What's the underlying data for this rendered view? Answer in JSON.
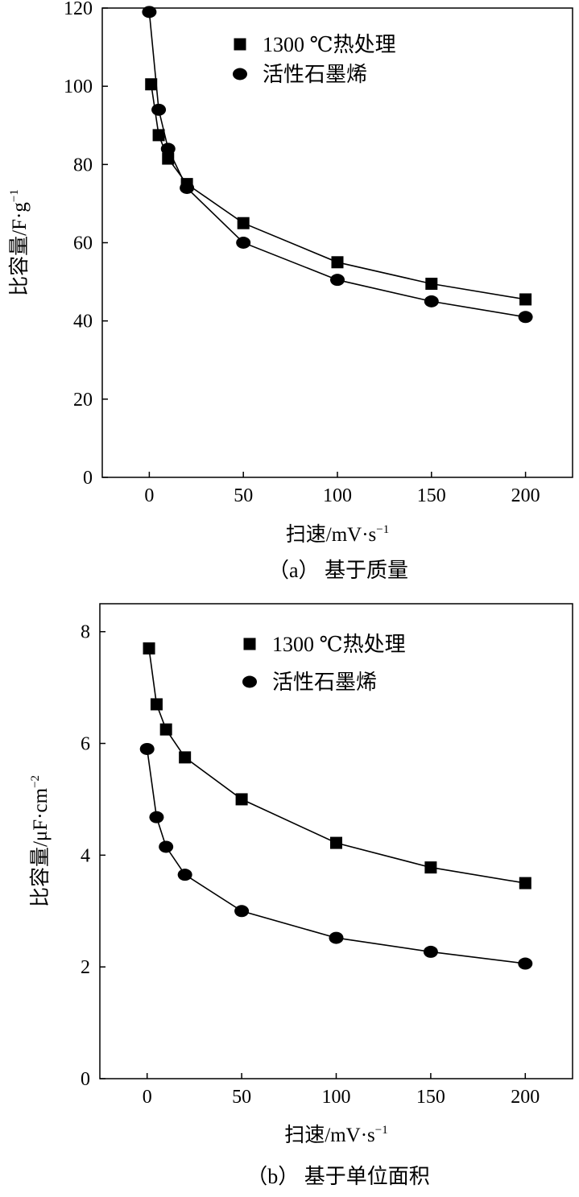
{
  "chart_data": [
    {
      "type": "line",
      "caption": "（a） 基于质量",
      "xlabel": "扫速/mV·s",
      "xlabel_sup": "−1",
      "ylabel": "比容量/F·g",
      "ylabel_sup": "−1",
      "xlim": [
        -25,
        225
      ],
      "ylim": [
        0,
        120
      ],
      "xticks": [
        0,
        50,
        100,
        150,
        200
      ],
      "yticks": [
        0,
        20,
        40,
        60,
        80,
        100,
        120
      ],
      "grid": false,
      "legend_position": "top-right",
      "series": [
        {
          "name": "1300 ℃热处理",
          "marker": "square",
          "x": [
            1,
            5,
            10,
            20,
            50,
            100,
            150,
            200
          ],
          "y": [
            100.5,
            87.5,
            81.5,
            75,
            65,
            55,
            49.5,
            45.5
          ]
        },
        {
          "name": "活性石墨烯",
          "marker": "diamond",
          "x": [
            0,
            5,
            10,
            20,
            50,
            100,
            150,
            200
          ],
          "y": [
            119,
            94,
            84,
            74,
            60,
            50.5,
            45,
            41
          ]
        }
      ]
    },
    {
      "type": "line",
      "caption": "（b） 基于单位面积",
      "xlabel": "扫速/mV·s",
      "xlabel_sup": "−1",
      "ylabel": "比容量/μF·cm",
      "ylabel_sup": "−2",
      "xlim": [
        -25,
        225
      ],
      "ylim": [
        0,
        8.5
      ],
      "xticks": [
        0,
        50,
        100,
        150,
        200
      ],
      "yticks": [
        0,
        2,
        4,
        6,
        8
      ],
      "grid": false,
      "legend_position": "top-right",
      "series": [
        {
          "name": "1300 ℃热处理",
          "marker": "square",
          "x": [
            1,
            5,
            10,
            20,
            50,
            100,
            150,
            200
          ],
          "y": [
            7.7,
            6.7,
            6.25,
            5.75,
            5.0,
            4.22,
            3.78,
            3.5
          ]
        },
        {
          "name": "活性石墨烯",
          "marker": "diamond",
          "x": [
            0,
            5,
            10,
            20,
            50,
            100,
            150,
            200
          ],
          "y": [
            5.9,
            4.68,
            4.15,
            3.65,
            3.0,
            2.52,
            2.27,
            2.06
          ]
        }
      ]
    }
  ]
}
